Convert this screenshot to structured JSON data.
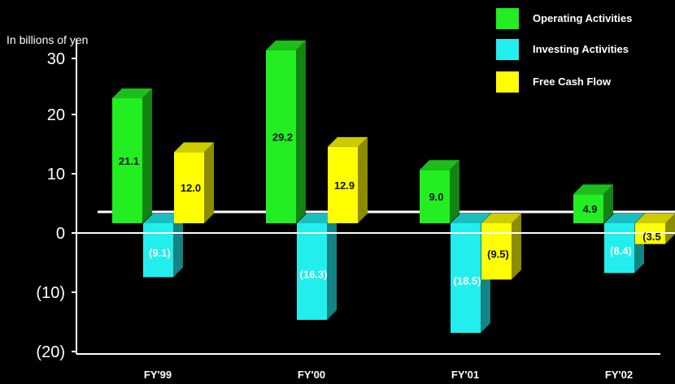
{
  "chart_data": {
    "type": "bar",
    "ylabel": "In billions of yen",
    "categories": [
      "FY'99",
      "FY'00",
      "FY'01",
      "FY'02"
    ],
    "series": [
      {
        "name": "Operating Activities",
        "color": "#22ee22",
        "values": [
          21.1,
          29.2,
          9.0,
          4.9
        ],
        "labels": [
          "21.1",
          "29.2",
          "9.0",
          "4.9"
        ]
      },
      {
        "name": "Investing Activities",
        "color": "#22eeee",
        "values": [
          -9.1,
          -16.3,
          -18.5,
          -8.4
        ],
        "labels": [
          "(9.1)",
          "(16.3)",
          "(18.5)",
          "(8.4)"
        ]
      },
      {
        "name": "Free Cash Flow",
        "color": "#ffff00",
        "values": [
          12.0,
          12.9,
          -9.5,
          -3.5
        ],
        "labels": [
          "12.0",
          "12.9",
          "(9.5)",
          "(3.5"
        ]
      }
    ],
    "y_ticks": [
      {
        "value": 30,
        "label": "30"
      },
      {
        "value": 20,
        "label": "20"
      },
      {
        "value": 10,
        "label": "10"
      },
      {
        "value": 0,
        "label": "0"
      },
      {
        "value": -10,
        "label": "(10)"
      },
      {
        "value": -20,
        "label": "(20)"
      }
    ],
    "ylim": [
      -20,
      30
    ],
    "grid": false,
    "legend": "top-right"
  }
}
